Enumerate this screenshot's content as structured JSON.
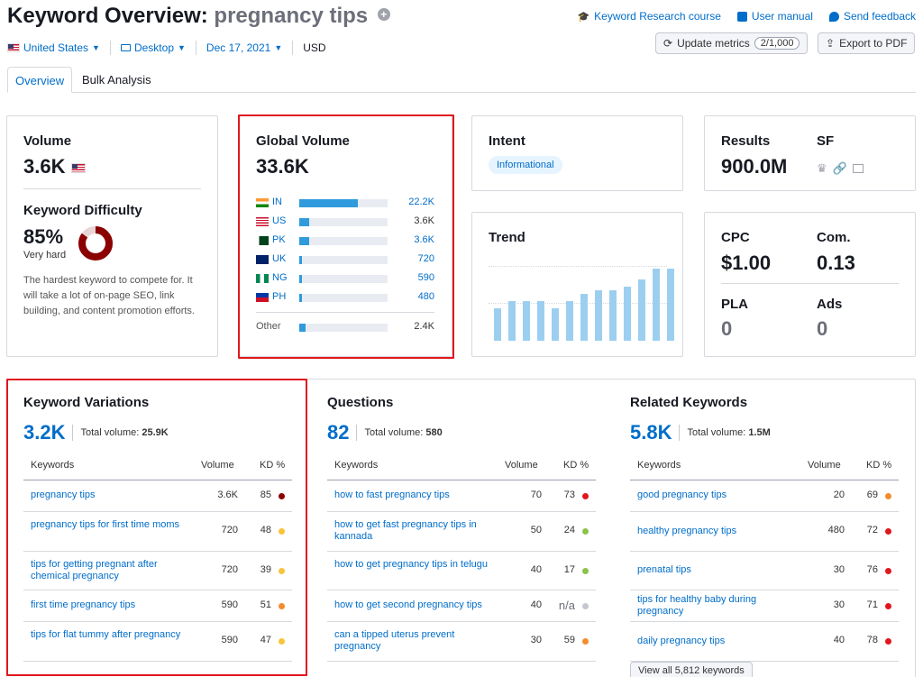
{
  "header": {
    "title_prefix": "Keyword Overview:",
    "keyword": "pregnancy tips",
    "links": [
      "Keyword Research course",
      "User manual",
      "Send feedback"
    ],
    "update_label": "Update metrics",
    "update_count": "2/1,000",
    "export_label": "Export to PDF"
  },
  "filters": {
    "country": "United States",
    "device": "Desktop",
    "date": "Dec 17, 2021",
    "currency": "USD"
  },
  "tabs": [
    "Overview",
    "Bulk Analysis"
  ],
  "volume": {
    "title": "Volume",
    "value": "3.6K"
  },
  "difficulty": {
    "title": "Keyword Difficulty",
    "value": "85%",
    "label": "Very hard",
    "percent": 85,
    "description": "The hardest keyword to compete for. It will take a lot of on-page SEO, link building, and content promotion efforts."
  },
  "global_volume": {
    "title": "Global Volume",
    "value": "33.6K",
    "countries": [
      {
        "code": "IN",
        "value": "22.2K",
        "share": 0.66
      },
      {
        "code": "US",
        "value": "3.6K",
        "share": 0.11
      },
      {
        "code": "PK",
        "value": "3.6K",
        "share": 0.11
      },
      {
        "code": "UK",
        "value": "720",
        "share": 0.03
      },
      {
        "code": "NG",
        "value": "590",
        "share": 0.03
      },
      {
        "code": "PH",
        "value": "480",
        "share": 0.03
      }
    ],
    "other": {
      "label": "Other",
      "value": "2.4K",
      "share": 0.07
    }
  },
  "intent": {
    "title": "Intent",
    "badge": "Informational"
  },
  "results": {
    "title": "Results",
    "value": "900.0M",
    "sf_title": "SF"
  },
  "trend": {
    "title": "Trend",
    "values": [
      0.43,
      0.52,
      0.52,
      0.52,
      0.43,
      0.52,
      0.62,
      0.67,
      0.67,
      0.72,
      0.81,
      0.95,
      0.95
    ]
  },
  "cpc": {
    "cpc_title": "CPC",
    "cpc_value": "$1.00",
    "com_title": "Com.",
    "com_value": "0.13",
    "pla_title": "PLA",
    "pla_value": "0",
    "ads_title": "Ads",
    "ads_value": "0"
  },
  "colors": {
    "red": "#e0171e",
    "dark_red": "#8b0000",
    "orange": "#f48c2c",
    "yellow": "#f8c43a",
    "green": "#8bc34a",
    "gray": "#c4c7cf"
  },
  "variations": {
    "title": "Keyword Variations",
    "count": "3.2K",
    "total_label": "Total volume:",
    "total_value": "25.9K",
    "headers": [
      "Keywords",
      "Volume",
      "KD %"
    ],
    "rows": [
      {
        "kw": "pregnancy tips",
        "vol": "3.6K",
        "kd": "85",
        "color": "#8b0000"
      },
      {
        "kw": "pregnancy tips for first time moms",
        "vol": "720",
        "kd": "48",
        "color": "#f8c43a"
      },
      {
        "kw": "tips for getting pregnant after chemical pregnancy",
        "vol": "720",
        "kd": "39",
        "color": "#f8c43a"
      },
      {
        "kw": "first time pregnancy tips",
        "vol": "590",
        "kd": "51",
        "color": "#f48c2c"
      },
      {
        "kw": "tips for flat tummy after pregnancy",
        "vol": "590",
        "kd": "47",
        "color": "#f8c43a"
      }
    ]
  },
  "questions": {
    "title": "Questions",
    "count": "82",
    "total_label": "Total volume:",
    "total_value": "580",
    "headers": [
      "Keywords",
      "Volume",
      "KD %"
    ],
    "rows": [
      {
        "kw": "how to fast pregnancy tips",
        "vol": "70",
        "kd": "73",
        "color": "#e0171e"
      },
      {
        "kw": "how to get fast pregnancy tips in kannada",
        "vol": "50",
        "kd": "24",
        "color": "#8bc34a"
      },
      {
        "kw": "how to get pregnancy tips in telugu",
        "vol": "40",
        "kd": "17",
        "color": "#8bc34a"
      },
      {
        "kw": "how to get second pregnancy tips",
        "vol": "40",
        "kd": "n/a",
        "color": "#c4c7cf"
      },
      {
        "kw": "can a tipped uterus prevent pregnancy",
        "vol": "30",
        "kd": "59",
        "color": "#f48c2c"
      }
    ]
  },
  "related": {
    "title": "Related Keywords",
    "count": "5.8K",
    "total_label": "Total volume:",
    "total_value": "1.5M",
    "headers": [
      "Keywords",
      "Volume",
      "KD %"
    ],
    "rows": [
      {
        "kw": "good pregnancy tips",
        "vol": "20",
        "kd": "69",
        "color": "#f48c2c"
      },
      {
        "kw": "healthy pregnancy tips",
        "vol": "480",
        "kd": "72",
        "color": "#e0171e"
      },
      {
        "kw": "prenatal tips",
        "vol": "30",
        "kd": "76",
        "color": "#e0171e"
      },
      {
        "kw": "tips for healthy baby during pregnancy",
        "vol": "30",
        "kd": "71",
        "color": "#e0171e"
      },
      {
        "kw": "daily pregnancy tips",
        "vol": "40",
        "kd": "78",
        "color": "#e0171e"
      }
    ],
    "view_all": "View all 5,812 keywords"
  }
}
